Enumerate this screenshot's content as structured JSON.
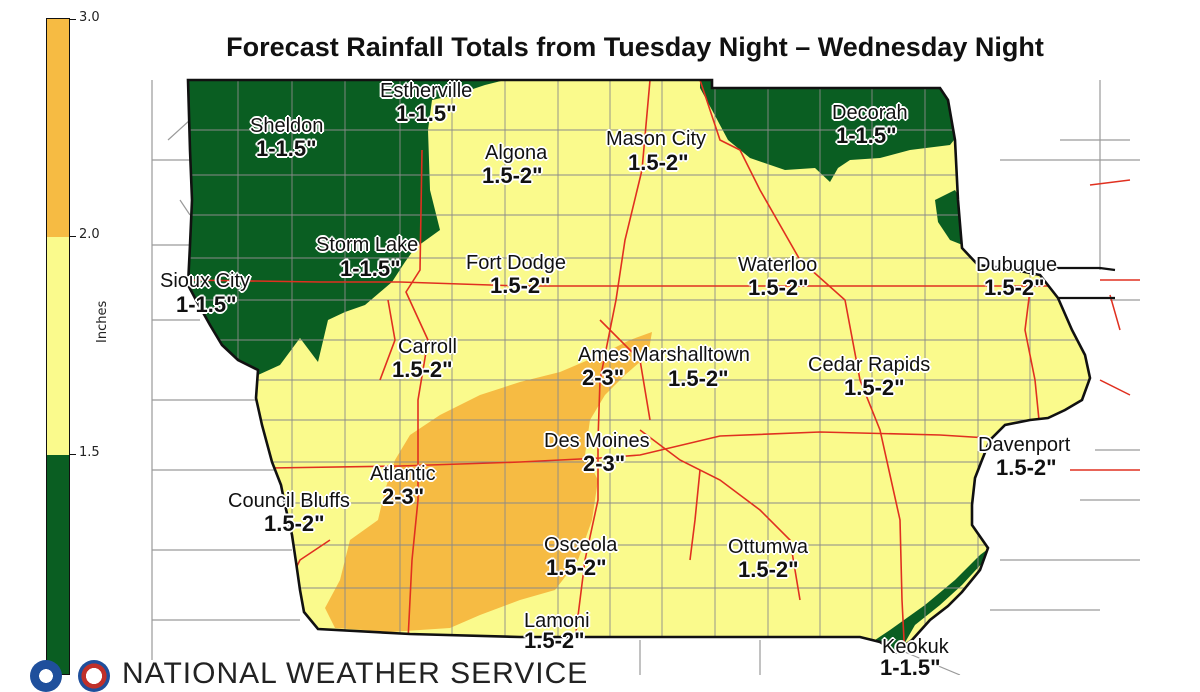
{
  "title": "Forecast Rainfall Totals from Tuesday Night – Wednesday Night",
  "colorbar": {
    "unit": "Inches",
    "ticks": [
      "3.0",
      "2.0",
      "1.5"
    ],
    "range": [
      1.0,
      3.0
    ],
    "bands": [
      {
        "from": 2.0,
        "to": 3.0,
        "color": "#f6bb43"
      },
      {
        "from": 1.5,
        "to": 2.0,
        "color": "#fafa8c"
      },
      {
        "from": 1.0,
        "to": 1.5,
        "color": "#0a5e22"
      }
    ]
  },
  "colors": {
    "low": "#0a5e22",
    "mid": "#fafa8c",
    "high": "#f6bb43",
    "roads": "#e03020",
    "counties": "#8a8a8a"
  },
  "cities": [
    {
      "name": "Estherville",
      "amount": "1-1.5\""
    },
    {
      "name": "Sheldon",
      "amount": "1-1.5\""
    },
    {
      "name": "Algona",
      "amount": "1.5-2\""
    },
    {
      "name": "Mason City",
      "amount": "1.5-2\""
    },
    {
      "name": "Decorah",
      "amount": "1-1.5\""
    },
    {
      "name": "Storm Lake",
      "amount": "1-1.5\""
    },
    {
      "name": "Fort Dodge",
      "amount": "1.5-2\""
    },
    {
      "name": "Waterloo",
      "amount": "1.5-2\""
    },
    {
      "name": "Dubuque",
      "amount": "1.5-2\""
    },
    {
      "name": "Sioux City",
      "amount": "1-1.5\""
    },
    {
      "name": "Carroll",
      "amount": "1.5-2\""
    },
    {
      "name": "Ames",
      "amount": "2-3\""
    },
    {
      "name": "Marshalltown",
      "amount": "1.5-2\""
    },
    {
      "name": "Cedar Rapids",
      "amount": "1.5-2\""
    },
    {
      "name": "Des Moines",
      "amount": "2-3\""
    },
    {
      "name": "Davenport",
      "amount": "1.5-2\""
    },
    {
      "name": "Atlantic",
      "amount": "2-3\""
    },
    {
      "name": "Council Bluffs",
      "amount": "1.5-2\""
    },
    {
      "name": "Osceola",
      "amount": "1.5-2\""
    },
    {
      "name": "Ottumwa",
      "amount": "1.5-2\""
    },
    {
      "name": "Lamoni",
      "amount": "1.5-2\""
    },
    {
      "name": "Keokuk",
      "amount": "1-1.5\""
    }
  ],
  "footer": {
    "agency": "NATIONAL WEATHER SERVICE"
  }
}
